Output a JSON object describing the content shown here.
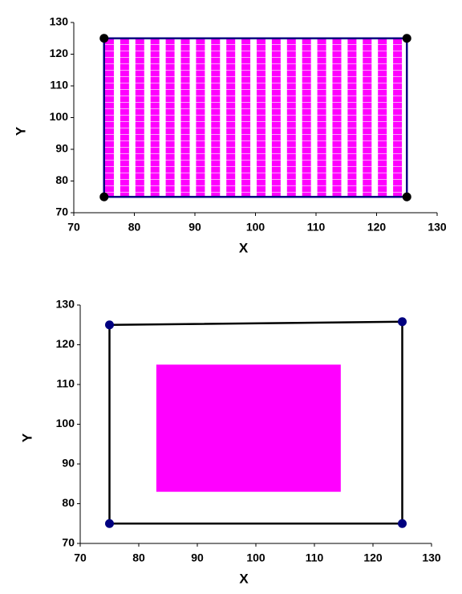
{
  "chart_data": [
    {
      "type": "scatter",
      "xlabel": "X",
      "ylabel": "Y",
      "x": [
        75,
        75,
        125,
        125
      ],
      "values": [
        75,
        125,
        125,
        75
      ],
      "marker_color": "#000000",
      "line_color": "#000080",
      "rect": {
        "x": [
          75,
          125
        ],
        "y": [
          75,
          125
        ],
        "color": "#ff00ff",
        "pattern": "stripes"
      },
      "xlim": [
        70,
        130
      ],
      "ylim": [
        70,
        130
      ],
      "xticks": [
        70,
        80,
        90,
        100,
        110,
        120,
        130
      ],
      "yticks": [
        70,
        80,
        90,
        100,
        110,
        120,
        130
      ]
    },
    {
      "type": "scatter",
      "xlabel": "X",
      "ylabel": "Y",
      "x": [
        75,
        75,
        125,
        125
      ],
      "values": [
        75,
        125,
        125.8,
        75
      ],
      "marker_color": "#000080",
      "line_color": "#000000",
      "rect": {
        "x": [
          83,
          114.5
        ],
        "y": [
          83,
          115
        ],
        "color": "#ff00ff",
        "pattern": "solid"
      },
      "xlim": [
        70,
        130
      ],
      "ylim": [
        70,
        130
      ],
      "xticks": [
        70,
        80,
        90,
        100,
        110,
        120,
        130
      ],
      "yticks": [
        70,
        80,
        90,
        100,
        110,
        120,
        130
      ]
    }
  ]
}
